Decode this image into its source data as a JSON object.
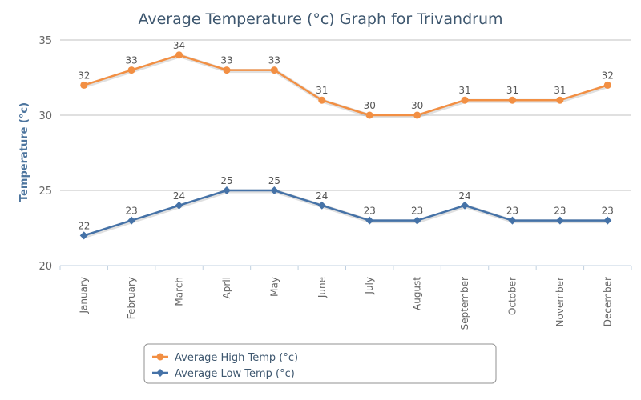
{
  "chart_data": {
    "type": "line",
    "title": "Average Temperature (°c) Graph for Trivandrum",
    "xlabel": "",
    "ylabel": "Temperature (°c)",
    "ylim": [
      20,
      35
    ],
    "yticks": [
      20,
      25,
      30,
      35
    ],
    "grid": true,
    "legend_position": "bottom",
    "categories": [
      "January",
      "February",
      "March",
      "April",
      "May",
      "June",
      "July",
      "August",
      "September",
      "October",
      "November",
      "December"
    ],
    "series": [
      {
        "name": "Average High Temp (°c)",
        "color": "#f28f43",
        "marker": "circle",
        "values": [
          32,
          33,
          34,
          33,
          33,
          31,
          30,
          30,
          31,
          31,
          31,
          32
        ]
      },
      {
        "name": "Average Low Temp (°c)",
        "color": "#4572a7",
        "marker": "diamond",
        "values": [
          22,
          23,
          24,
          25,
          25,
          24,
          23,
          23,
          24,
          23,
          23,
          23
        ]
      }
    ]
  }
}
